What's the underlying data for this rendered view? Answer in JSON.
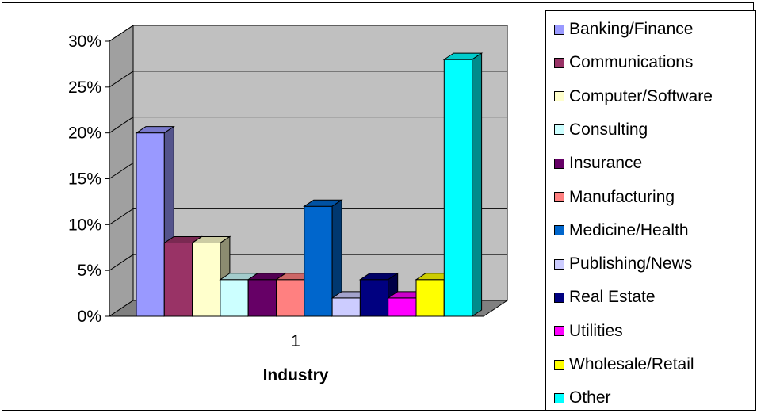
{
  "chart_data": {
    "type": "bar",
    "categories": [
      "1"
    ],
    "xlabel": "Industry",
    "ylabel": "",
    "ylim": [
      0,
      0.3
    ],
    "yticks": [
      "0%",
      "5%",
      "10%",
      "15%",
      "20%",
      "25%",
      "30%"
    ],
    "grid": true,
    "three_d": true,
    "legend_position": "right",
    "series": [
      {
        "name": "Banking/Finance",
        "values": [
          0.2
        ],
        "color": "#9999ff"
      },
      {
        "name": "Communications",
        "values": [
          0.08
        ],
        "color": "#993366"
      },
      {
        "name": "Computer/Software",
        "values": [
          0.08
        ],
        "color": "#ffffcc"
      },
      {
        "name": "Consulting",
        "values": [
          0.04
        ],
        "color": "#ccffff"
      },
      {
        "name": "Insurance",
        "values": [
          0.04
        ],
        "color": "#660066"
      },
      {
        "name": "Manufacturing",
        "values": [
          0.04
        ],
        "color": "#ff8080"
      },
      {
        "name": "Medicine/Health",
        "values": [
          0.12
        ],
        "color": "#0066cc"
      },
      {
        "name": "Publishing/News",
        "values": [
          0.02
        ],
        "color": "#ccccff"
      },
      {
        "name": "Real Estate",
        "values": [
          0.04
        ],
        "color": "#000080"
      },
      {
        "name": "Utilities",
        "values": [
          0.02
        ],
        "color": "#ff00ff"
      },
      {
        "name": "Wholesale/Retail",
        "values": [
          0.04
        ],
        "color": "#ffff00"
      },
      {
        "name": "Other",
        "values": [
          0.28
        ],
        "color": "#00ffff"
      }
    ]
  },
  "colors": {
    "wall": "#c0c0c0",
    "floor": "#808080",
    "side_wall": "#a0a0a0"
  }
}
